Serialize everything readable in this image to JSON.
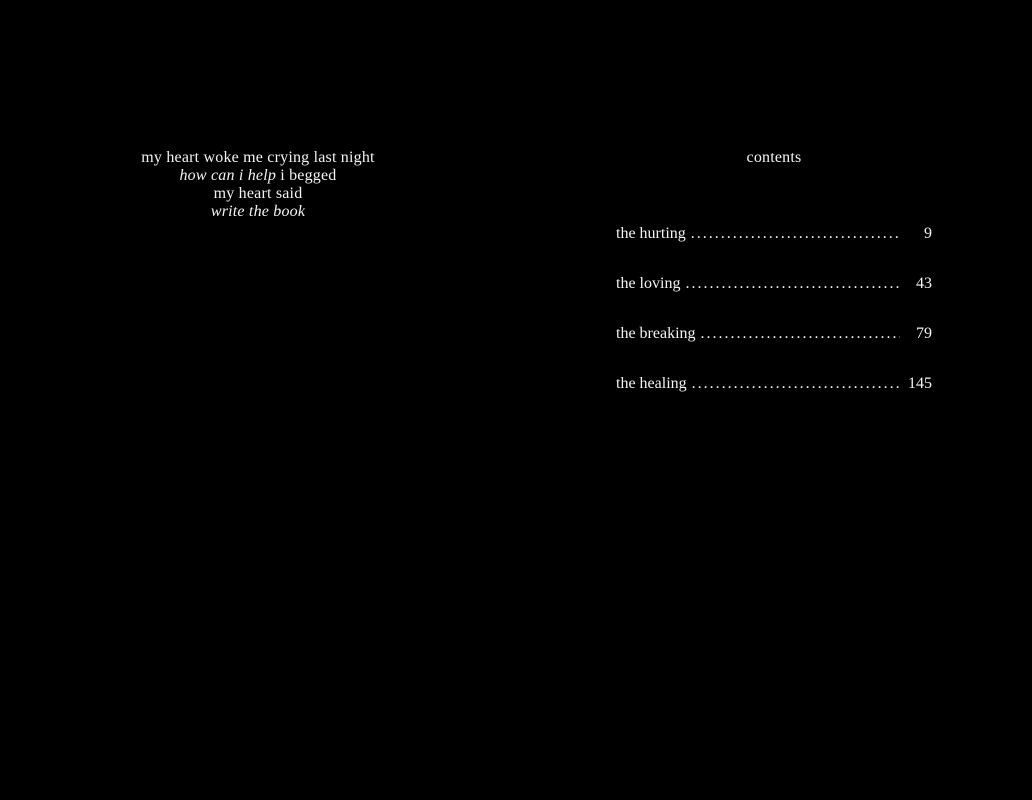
{
  "canvas": {
    "background_color": "#000000",
    "text_color": "#f3f3f3"
  },
  "left_page": {
    "poem": {
      "lines": [
        {
          "segments": [
            {
              "text": "my heart woke me crying last night",
              "italic": false
            }
          ]
        },
        {
          "segments": [
            {
              "text": "how can i help",
              "italic": true
            },
            {
              "text": " i begged",
              "italic": false
            }
          ]
        },
        {
          "segments": [
            {
              "text": "my heart said",
              "italic": false
            }
          ]
        },
        {
          "segments": [
            {
              "text": "write the book",
              "italic": true
            }
          ]
        }
      ]
    }
  },
  "right_page": {
    "heading": "contents",
    "dot_leader": "...........................................................................................",
    "toc": [
      {
        "title": "the hurting",
        "page": "9"
      },
      {
        "title": "the loving",
        "page": "43"
      },
      {
        "title": "the breaking",
        "page": "79"
      },
      {
        "title": "the healing",
        "page": "145"
      }
    ]
  }
}
